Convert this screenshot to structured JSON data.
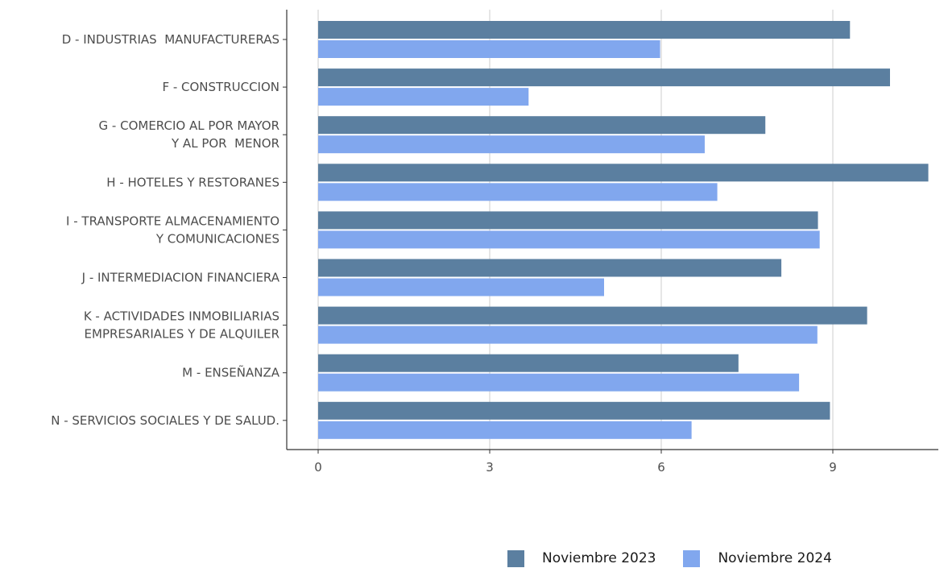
{
  "chart_data": {
    "type": "bar",
    "orientation": "horizontal",
    "categories": [
      [
        "D - INDUSTRIAS  MANUFACTURERAS"
      ],
      [
        "F - CONSTRUCCION"
      ],
      [
        "G - COMERCIO AL POR MAYOR",
        "Y AL POR  MENOR"
      ],
      [
        "H - HOTELES Y RESTORANES"
      ],
      [
        "I - TRANSPORTE ALMACENAMIENTO",
        "Y COMUNICACIONES"
      ],
      [
        "J - INTERMEDIACION FINANCIERA"
      ],
      [
        "K - ACTIVIDADES INMOBILIARIAS",
        "EMPRESARIALES Y DE ALQUILER"
      ],
      [
        "M - ENSEÑANZA"
      ],
      [
        "N - SERVICIOS SOCIALES Y DE SALUD."
      ]
    ],
    "series": [
      {
        "name": "Noviembre 2023",
        "color": "#5b7fa0",
        "values": [
          9.3,
          10.0,
          7.82,
          10.67,
          8.74,
          8.1,
          9.6,
          7.35,
          8.95
        ]
      },
      {
        "name": "Noviembre 2024",
        "color": "#81a7ee",
        "values": [
          5.98,
          3.68,
          6.76,
          6.98,
          8.77,
          5.0,
          8.73,
          8.41,
          6.53
        ]
      }
    ],
    "xlim": [
      0,
      10.67
    ],
    "xticks": [
      "0",
      "3",
      "6",
      "9"
    ],
    "grid": "vertical",
    "legend": "bottom-right",
    "title": "",
    "xlabel": "",
    "ylabel": ""
  }
}
